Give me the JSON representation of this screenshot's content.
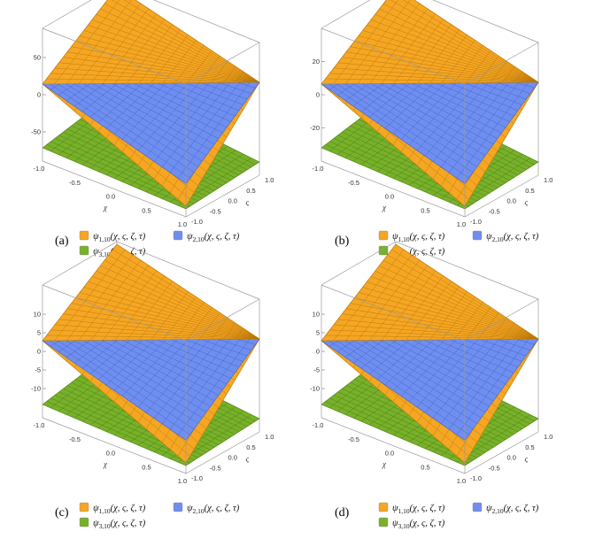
{
  "chart_data": [
    {
      "type": "surface3d",
      "panel_label": "(a)",
      "xlabel": "χ",
      "ylabel": "ς",
      "x_ticks": [
        "-1.0",
        "-0.5",
        "0.0",
        "0.5",
        "1.0"
      ],
      "y_ticks": [
        "-1.0",
        "-0.5",
        "0.0",
        "0.5",
        "1.0"
      ],
      "z_ticks": [
        "50",
        "0",
        "-50"
      ],
      "legend": [
        {
          "name": "ψ",
          "sub": "1,10",
          "args": "(χ, ς, ζ, τ)",
          "color": "#f5a623"
        },
        {
          "name": "ψ",
          "sub": "2,10",
          "args": "(χ, ς, ζ, τ)",
          "color": "#6f8ff0"
        },
        {
          "name": "ψ",
          "sub": "3,10",
          "args": "(χ, ς, ζ, τ)",
          "color": "#77b12a"
        }
      ]
    },
    {
      "type": "surface3d",
      "panel_label": "(b)",
      "xlabel": "χ",
      "ylabel": "ς",
      "x_ticks": [
        "-1.0",
        "-0.5",
        "0.0",
        "0.5",
        "1.0"
      ],
      "y_ticks": [
        "-1.0",
        "-0.5",
        "0.0",
        "0.5",
        "1.0"
      ],
      "z_ticks": [
        "20",
        "0",
        "-20"
      ],
      "legend": [
        {
          "name": "ψ",
          "sub": "1,10",
          "args": "(χ, ς, ζ, τ)",
          "color": "#f5a623"
        },
        {
          "name": "ψ",
          "sub": "2,10",
          "args": "(χ, ς, ζ, τ)",
          "color": "#6f8ff0"
        },
        {
          "name": "ψ",
          "sub": "3,10",
          "args": "(χ, ς, ζ, τ)",
          "color": "#77b12a"
        }
      ]
    },
    {
      "type": "surface3d",
      "panel_label": "(c)",
      "xlabel": "χ",
      "ylabel": "ς",
      "x_ticks": [
        "-1.0",
        "-0.5",
        "0.0",
        "0.5",
        "1.0"
      ],
      "y_ticks": [
        "-1.0",
        "-0.5",
        "0.0",
        "0.5",
        "1.0"
      ],
      "z_ticks": [
        "10",
        "5",
        "0",
        "-5",
        "-10"
      ],
      "legend": [
        {
          "name": "ψ",
          "sub": "1,10",
          "args": "(χ, ς, ζ, τ)",
          "color": "#f5a623"
        },
        {
          "name": "ψ",
          "sub": "2,10",
          "args": "(χ, ς, ζ, τ)",
          "color": "#6f8ff0"
        },
        {
          "name": "ψ",
          "sub": "3,10",
          "args": "(χ, ς, ζ, τ)",
          "color": "#77b12a"
        }
      ]
    },
    {
      "type": "surface3d",
      "panel_label": "(d)",
      "xlabel": "χ",
      "ylabel": "ς",
      "x_ticks": [
        "-1.0",
        "-0.5",
        "0.0",
        "0.5",
        "1.0"
      ],
      "y_ticks": [
        "-1.0",
        "-0.5",
        "0.0",
        "0.5",
        "1.0"
      ],
      "z_ticks": [
        "10",
        "5",
        "0",
        "-5",
        "-10"
      ],
      "legend": [
        {
          "name": "ψ",
          "sub": "1,10",
          "args": "(χ, ς, ζ, τ)",
          "color": "#f5a623"
        },
        {
          "name": "ψ",
          "sub": "2,10",
          "args": "(χ, ς, ζ, τ)",
          "color": "#6f8ff0"
        },
        {
          "name": "ψ",
          "sub": "3,10",
          "args": "(χ, ς, ζ, τ)",
          "color": "#77b12a"
        }
      ]
    }
  ]
}
